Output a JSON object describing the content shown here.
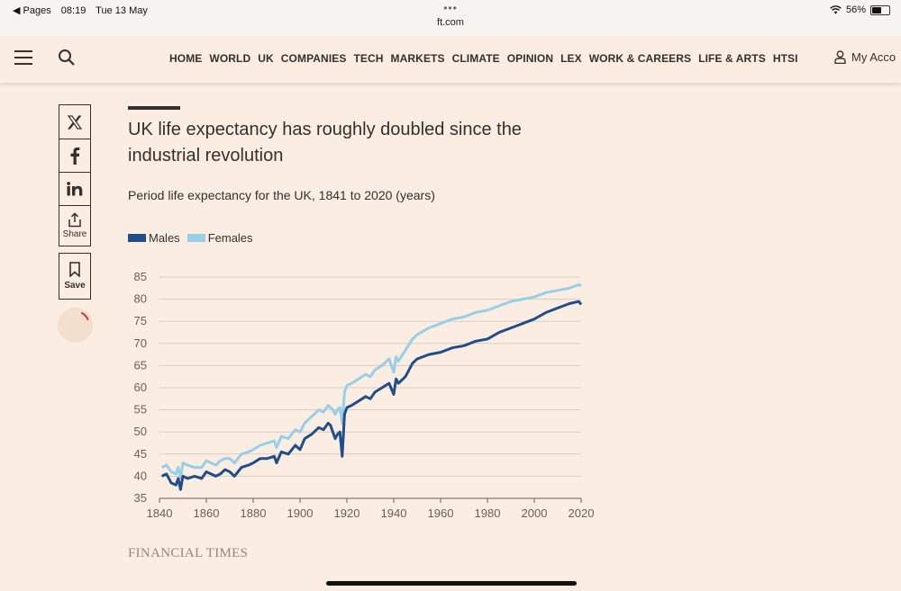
{
  "status_bar": {
    "back_label": "◀ Pages",
    "time": "08:19",
    "date": "Tue 13 May",
    "url": "ft.com",
    "battery": "56%"
  },
  "nav": {
    "items": [
      "HOME",
      "WORLD",
      "UK",
      "COMPANIES",
      "TECH",
      "MARKETS",
      "CLIMATE",
      "OPINION",
      "LEX",
      "WORK & CAREERS",
      "LIFE & ARTS",
      "HTSI"
    ],
    "account_label": "My Acco"
  },
  "share": {
    "share_label": "Share",
    "save_label": "Save"
  },
  "article": {
    "title": "UK life expectancy has roughly doubled since the industrial revolution",
    "subtitle": "Period life expectancy for the UK, 1841 to 2020 (years)",
    "source": "FINANCIAL TIMES"
  },
  "colors": {
    "males": "#1f4e8a",
    "females": "#96cfe6",
    "background": "#fcede2",
    "grid": "#d9cdc3"
  },
  "chart_data": {
    "type": "line",
    "title": "UK life expectancy has roughly doubled since the industrial revolution",
    "subtitle": "Period life expectancy for the UK, 1841 to 2020 (years)",
    "xlabel": "",
    "ylabel": "",
    "xlim": [
      1840,
      2020
    ],
    "ylim": [
      35,
      85
    ],
    "x_ticks": [
      1840,
      1860,
      1880,
      1900,
      1920,
      1940,
      1960,
      1980,
      2000,
      2020
    ],
    "y_ticks": [
      35,
      40,
      45,
      50,
      55,
      60,
      65,
      70,
      75,
      80,
      85
    ],
    "legend": "top-left",
    "series": [
      {
        "name": "Males",
        "x": [
          1841,
          1843,
          1845,
          1847,
          1848,
          1849,
          1850,
          1852,
          1855,
          1858,
          1860,
          1862,
          1864,
          1866,
          1868,
          1870,
          1872,
          1875,
          1878,
          1880,
          1883,
          1886,
          1889,
          1890,
          1892,
          1895,
          1898,
          1900,
          1902,
          1905,
          1908,
          1910,
          1912,
          1913,
          1914,
          1915,
          1916,
          1917,
          1918,
          1919,
          1920,
          1922,
          1925,
          1928,
          1930,
          1932,
          1935,
          1938,
          1940,
          1941,
          1942,
          1945,
          1948,
          1950,
          1955,
          1960,
          1965,
          1970,
          1975,
          1980,
          1985,
          1990,
          1995,
          2000,
          2005,
          2010,
          2015,
          2019,
          2020
        ],
        "values": [
          40,
          40.5,
          38.5,
          38,
          39.5,
          37,
          40,
          39.5,
          40,
          39.5,
          41,
          40.5,
          40,
          40.5,
          41.5,
          41,
          40,
          42,
          42.5,
          43,
          44,
          44,
          44.5,
          43,
          45.5,
          45,
          47,
          46,
          48.5,
          49.5,
          51,
          50.5,
          52,
          51.5,
          50,
          48.5,
          49.5,
          50,
          44.5,
          54,
          55.5,
          56,
          57,
          58,
          57.5,
          59,
          60,
          61,
          58.5,
          62,
          61,
          62.5,
          65.5,
          66.5,
          67.5,
          68,
          69,
          69.5,
          70.5,
          71,
          72.5,
          73.5,
          74.5,
          75.5,
          77,
          78,
          79,
          79.5,
          78.8
        ]
      },
      {
        "name": "Females",
        "x": [
          1841,
          1843,
          1845,
          1847,
          1848,
          1849,
          1850,
          1852,
          1855,
          1858,
          1860,
          1862,
          1864,
          1866,
          1868,
          1870,
          1872,
          1875,
          1878,
          1880,
          1883,
          1886,
          1889,
          1890,
          1892,
          1895,
          1898,
          1900,
          1902,
          1905,
          1908,
          1910,
          1912,
          1913,
          1914,
          1915,
          1916,
          1917,
          1918,
          1919,
          1920,
          1922,
          1925,
          1928,
          1930,
          1932,
          1935,
          1938,
          1940,
          1941,
          1942,
          1945,
          1948,
          1950,
          1955,
          1960,
          1965,
          1970,
          1975,
          1980,
          1985,
          1990,
          1995,
          2000,
          2005,
          2010,
          2015,
          2019,
          2020
        ],
        "values": [
          42,
          42.5,
          41,
          40.5,
          42,
          39.5,
          43,
          42.5,
          42,
          42,
          43.5,
          43,
          42.5,
          43.5,
          44,
          44,
          43,
          45,
          45.5,
          46,
          47,
          47.5,
          48,
          46.5,
          49,
          48.5,
          50.5,
          50,
          52,
          53.5,
          55,
          54.5,
          56,
          55.5,
          55,
          54,
          55,
          55.5,
          52,
          59,
          60.5,
          61,
          62,
          63,
          62.5,
          64,
          65,
          66.5,
          63.5,
          67,
          66,
          68.5,
          71,
          72,
          73.5,
          74.5,
          75.5,
          76,
          77,
          77.5,
          78.5,
          79.5,
          80,
          80.5,
          81.5,
          82,
          82.5,
          83.3,
          83
        ]
      }
    ]
  }
}
